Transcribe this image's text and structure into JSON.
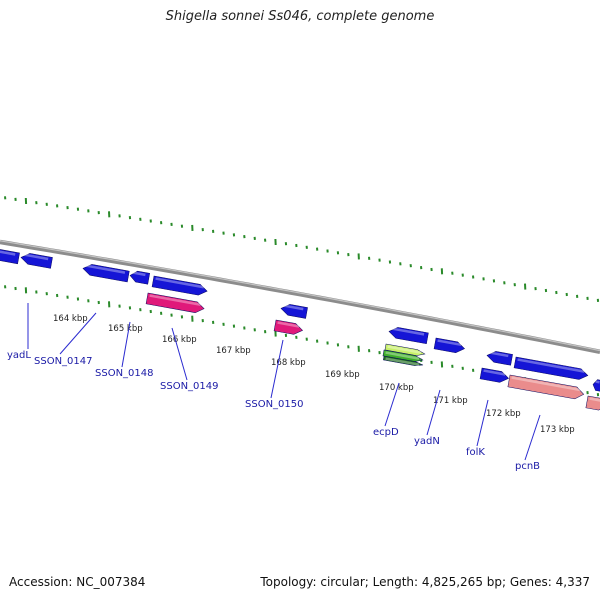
{
  "title": "Shigella sonnei Ss046, complete genome",
  "footer": {
    "accession": "Accession: NC_007384",
    "summary": "Topology: circular; Length: 4,825,265 bp; Genes: 4,337"
  },
  "colors": {
    "backbone": "#8c8c8c",
    "tick": "#2a8a2a",
    "cds": "#1515d6",
    "pink": "#e0197a",
    "salmon": "#ea8c8c",
    "green_feature": "#3fae2a",
    "label": "#1a1aa6"
  },
  "kbp_labels": [
    "164 kbp",
    "165 kbp",
    "166 kbp",
    "167 kbp",
    "168 kbp",
    "169 kbp",
    "170 kbp",
    "171 kbp",
    "172 kbp",
    "173 kbp"
  ],
  "gene_labels": [
    "yadL",
    "SSON_0147",
    "SSON_0148",
    "SSON_0149",
    "SSON_0150",
    "ecpD",
    "yadN",
    "folK",
    "pcnB"
  ]
}
